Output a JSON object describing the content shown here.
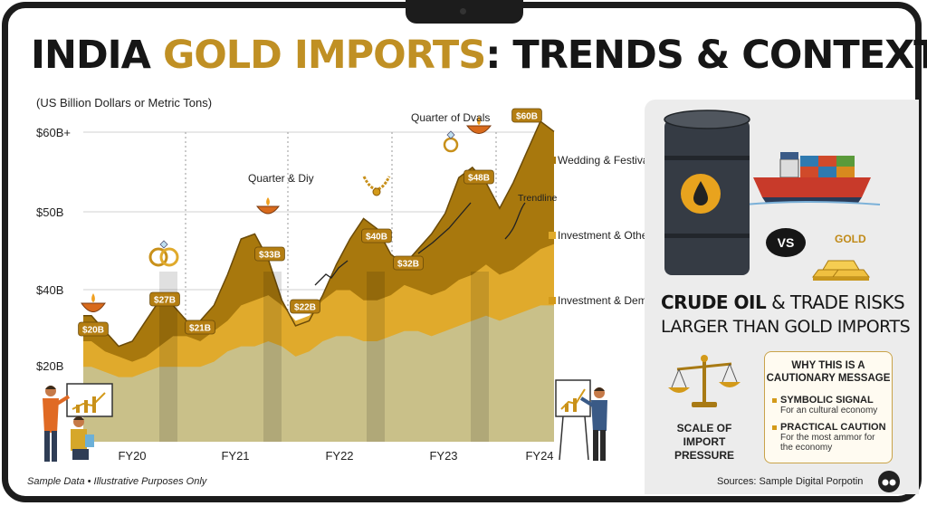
{
  "title": {
    "part1": "INDIA ",
    "part2": "GOLD IMPORTS",
    "part3": ": TRENDS & CONTEXT"
  },
  "subtitle": "(US Billion Dollars or Metric Tons)",
  "chart_data": {
    "type": "area",
    "y_ticks": [
      "$60B+",
      "$50B",
      "$40B",
      "$20B"
    ],
    "x_ticks": [
      "FY20",
      "FY21",
      "FY22",
      "FY23",
      "FY24"
    ],
    "x": [
      0,
      0.3,
      0.8,
      1.3,
      1.8,
      2.3,
      2.8,
      3.3,
      3.8,
      4.3,
      4.8,
      5.3,
      5.8,
      6.3,
      6.8,
      7.3,
      7.8,
      8.3,
      8.8,
      9.3,
      9.8,
      10.3,
      10.8,
      11.3,
      11.8,
      12.3,
      12.8,
      13.3,
      13.8,
      14.3,
      14.8,
      15.3,
      15.8,
      16.3,
      16.8,
      17.3
    ],
    "series": [
      {
        "name": "Investment & Demand",
        "values": [
          15,
          15,
          14,
          13,
          13,
          14,
          15,
          15,
          15,
          15,
          16,
          18,
          19,
          19,
          20,
          19,
          17,
          18,
          20,
          21,
          21,
          20,
          20,
          21,
          22,
          22,
          21,
          22,
          23,
          24,
          25,
          24,
          25,
          26,
          27,
          27
        ]
      },
      {
        "name": "Investment & Other Demand",
        "values": [
          20,
          20,
          18,
          17,
          16,
          17,
          19,
          21,
          21,
          20,
          22,
          24,
          27,
          28,
          29,
          27,
          24,
          25,
          28,
          30,
          30,
          28,
          28,
          29,
          31,
          30,
          29,
          30,
          32,
          33,
          35,
          33,
          34,
          36,
          38,
          39
        ]
      },
      {
        "name": "Wedding & Festival Season Demand",
        "values": [
          25,
          25,
          22,
          19,
          20,
          24,
          28,
          27,
          24,
          24,
          27,
          33,
          40,
          41,
          36,
          28,
          23,
          24,
          29,
          35,
          40,
          44,
          42,
          37,
          35,
          38,
          41,
          45,
          52,
          54,
          51,
          46,
          51,
          57,
          63,
          61
        ]
      }
    ],
    "point_labels": [
      "$20B",
      "$27B",
      "$21B",
      "$33B",
      "$22B",
      "$40B",
      "$32B",
      "$48B",
      "$60B"
    ],
    "annotations": [
      "Quarter & Diy",
      "Quarter of Dvals",
      "Trendline"
    ]
  },
  "legend": {
    "wedding": "Wedding & Festival Season Demand",
    "other": "Investment & Other Demand",
    "investment": "Investment & Demand"
  },
  "annotations": {
    "diwali_1": "Quarter & Diy",
    "diwali_2": "Quarter of Dvals",
    "trendline": "Trendline"
  },
  "footnote": "Sample Data • Illustrative Purposes Only",
  "panel": {
    "vs": "VS",
    "gold": "GOLD",
    "risk_line1_bold": "CRUDE OIL",
    "risk_line1_rest": " & TRADE RISKS",
    "risk_line2": "LARGER THAN GOLD IMPORTS",
    "scale_label": "SCALE OF IMPORT PRESSURE",
    "box_title": "WHY THIS IS A CAUTIONARY MESSAGE",
    "bullet1_title": "SYMBOLIC SIGNAL",
    "bullet1_desc": "For an cultural economy",
    "bullet2_title": "PRACTICAL CAUTION",
    "bullet2_desc": "For the most ammor for the economy",
    "sources": "Sources: Sample Digital Porpotin"
  },
  "colors": {
    "wedding": "#a8780d",
    "other": "#e0aa2c",
    "investment": "#c9c089",
    "title_gold": "#c09024"
  }
}
